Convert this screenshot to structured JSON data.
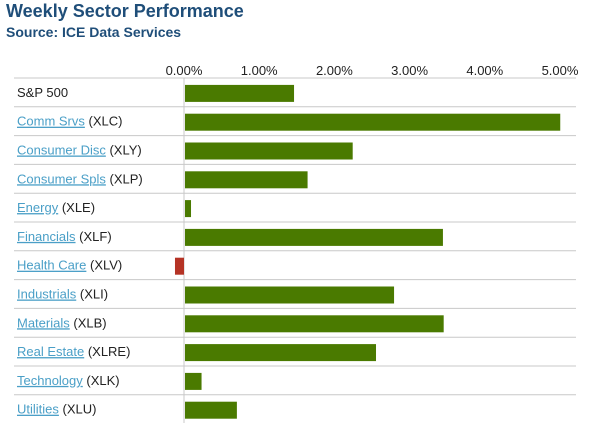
{
  "title": "Weekly Sector Performance",
  "subtitle": "Source: ICE Data Services",
  "colors": {
    "positive": "#4a7a00",
    "negative": "#b53325",
    "link": "#4a9fc7",
    "title": "#1f4e79"
  },
  "chart_data": {
    "type": "bar",
    "orientation": "horizontal",
    "xlim": [
      0,
      5
    ],
    "xticks": [
      "0.00%",
      "1.00%",
      "2.00%",
      "3.00%",
      "4.00%",
      "5.00%"
    ],
    "categories": [
      {
        "name": "S&P 500",
        "ticker": "",
        "link": false
      },
      {
        "name": "Comm Srvs",
        "ticker": "(XLC)",
        "link": true
      },
      {
        "name": "Consumer Disc",
        "ticker": "(XLY)",
        "link": true
      },
      {
        "name": "Consumer Spls",
        "ticker": "(XLP)",
        "link": true
      },
      {
        "name": "Energy",
        "ticker": "(XLE)",
        "link": true
      },
      {
        "name": "Financials",
        "ticker": "(XLF)",
        "link": true
      },
      {
        "name": "Health Care",
        "ticker": "(XLV)",
        "link": true
      },
      {
        "name": "Industrials",
        "ticker": "(XLI)",
        "link": true
      },
      {
        "name": "Materials",
        "ticker": "(XLB)",
        "link": true
      },
      {
        "name": "Real Estate",
        "ticker": "(XLRE)",
        "link": true
      },
      {
        "name": "Technology",
        "ticker": "(XLK)",
        "link": true
      },
      {
        "name": "Utilities",
        "ticker": "(XLU)",
        "link": true
      }
    ],
    "values": [
      1.45,
      4.99,
      2.23,
      1.63,
      0.08,
      3.43,
      -0.12,
      2.78,
      3.44,
      2.54,
      0.22,
      0.69
    ],
    "grid": "horizontal-row-separators"
  }
}
